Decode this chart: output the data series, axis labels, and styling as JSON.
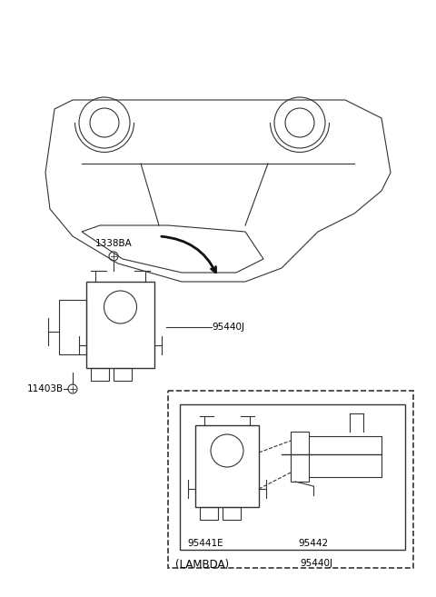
{
  "bg_color": "#ffffff",
  "line_color": "#333333",
  "label_color": "#000000",
  "title": "",
  "labels": {
    "LAMBDA": "(LAMBDA)",
    "part1": "95440J",
    "part2": "95441E",
    "part3": "95442",
    "part4": "95440J",
    "part5": "11403B",
    "part6": "1338BA"
  }
}
